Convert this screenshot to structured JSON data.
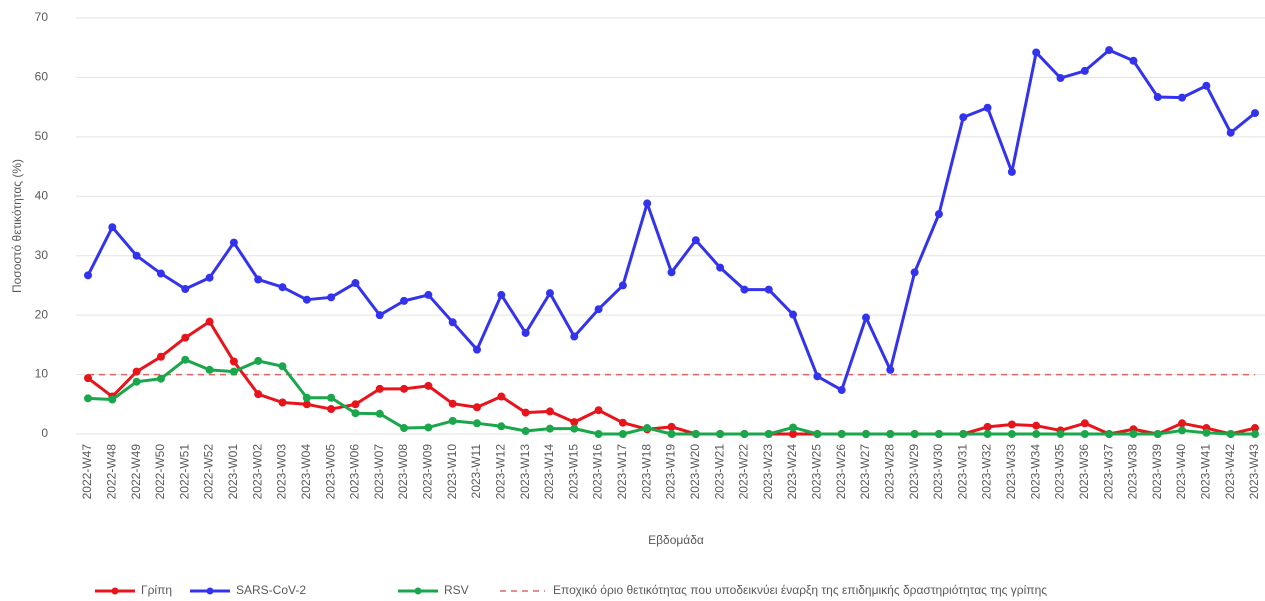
{
  "chart_data": {
    "type": "line",
    "x_label": "Εβδομάδα",
    "y_label": "Ποσοστό θετικότητας (%)",
    "categories": [
      "2022-W47",
      "2022-W48",
      "2022-W49",
      "2022-W50",
      "2022-W51",
      "2022-W52",
      "2023-W01",
      "2023-W02",
      "2023-W03",
      "2023-W04",
      "2023-W05",
      "2023-W06",
      "2023-W07",
      "2023-W08",
      "2023-W09",
      "2023-W10",
      "2023-W11",
      "2023-W12",
      "2023-W13",
      "2023-W14",
      "2023-W15",
      "2023-W16",
      "2023-W17",
      "2023-W18",
      "2023-W19",
      "2023-W20",
      "2023-W21",
      "2023-W22",
      "2023-W23",
      "2023-W24",
      "2023-W25",
      "2023-W26",
      "2023-W27",
      "2023-W28",
      "2023-W29",
      "2023-W30",
      "2023-W31",
      "2023-W32",
      "2023-W33",
      "2023-W34",
      "2023-W35",
      "2023-W36",
      "2023-W37",
      "2023-W38",
      "2023-W39",
      "2023-W40",
      "2023-W41",
      "2023-W42",
      "2023-W43"
    ],
    "series": [
      {
        "name": "Γρίπη",
        "color": "#e8141b",
        "values": [
          9.4,
          6.3,
          10.5,
          13,
          16.2,
          18.9,
          12.2,
          6.7,
          5.3,
          5,
          4.2,
          5,
          7.6,
          7.6,
          8.1,
          5.1,
          4.5,
          6.3,
          3.6,
          3.8,
          2,
          4,
          1.9,
          0.8,
          1.2,
          0,
          0,
          0,
          0,
          0,
          0,
          0,
          0,
          0,
          0,
          0,
          0,
          1.2,
          1.6,
          1.4,
          0.6,
          1.8,
          0,
          0.8,
          0,
          1.8,
          1,
          0,
          1
        ]
      },
      {
        "name": "SARS-CoV-2",
        "color": "#3333ee",
        "values": [
          26.7,
          34.8,
          30,
          27,
          24.4,
          26.3,
          32.2,
          26,
          24.7,
          22.6,
          23,
          25.4,
          20,
          22.4,
          23.4,
          18.8,
          14.2,
          23.4,
          17,
          23.7,
          16.4,
          21,
          25,
          38.8,
          27.2,
          32.6,
          28,
          24.3,
          24.3,
          20.1,
          9.7,
          7.4,
          19.6,
          10.8,
          27.2,
          37,
          53.3,
          54.9,
          44.1,
          64.2,
          59.9,
          61.1,
          64.6,
          62.8,
          56.7,
          56.6,
          58.6,
          50.7,
          54
        ]
      },
      {
        "name": "RSV",
        "color": "#1aa64a",
        "values": [
          6,
          5.8,
          8.8,
          9.3,
          12.5,
          10.8,
          10.5,
          12.3,
          11.4,
          6.1,
          6.1,
          3.5,
          3.4,
          1,
          1.1,
          2.2,
          1.8,
          1.3,
          0.5,
          0.9,
          0.9,
          0,
          0,
          1,
          0,
          0,
          0,
          0,
          0,
          1.1,
          0,
          0,
          0,
          0,
          0,
          0,
          0,
          0,
          0,
          0,
          0,
          0,
          0,
          0,
          0,
          0.6,
          0.2,
          0,
          0
        ]
      }
    ],
    "threshold": {
      "name": "Εποχικό όριο θετικότητας που υποδεικνύει έναρξη της επιδημικής δραστηριότητας της γρίπης",
      "value": 10,
      "color": "#e06666"
    },
    "ylim": [
      0,
      70
    ],
    "yticks": [
      0,
      10,
      20,
      30,
      40,
      50,
      60,
      70
    ],
    "grid": true
  }
}
